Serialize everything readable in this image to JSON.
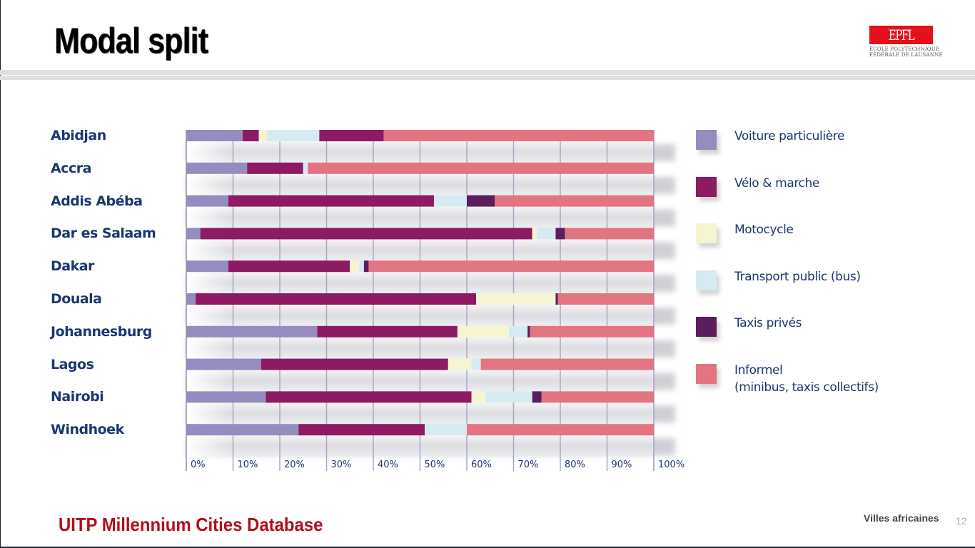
{
  "header": {
    "title": "Modal split",
    "logo": {
      "mark": "EPFL",
      "line1": "ÉCOLE POLYTECHNIQUE",
      "line2": "FÉDÉRALE DE LAUSANNE",
      "color": "#e5101b"
    }
  },
  "footer": {
    "source": "UITP Millennium Cities Database",
    "section": "Villes africaines",
    "page_number": "12"
  },
  "chart_data": {
    "type": "bar",
    "orientation": "horizontal",
    "stacked": "percent",
    "title": "Modal split",
    "xlabel": "",
    "ylabel": "",
    "xlim": [
      0,
      100
    ],
    "grid": true,
    "legend_position": "right",
    "x_ticks": [
      "0%",
      "10%",
      "20%",
      "30%",
      "40%",
      "50%",
      "60%",
      "70%",
      "80%",
      "90%",
      "100%"
    ],
    "categories": [
      "Abidjan",
      "Accra",
      "Addis Abéba",
      "Dar es Salaam",
      "Dakar",
      "Douala",
      "Johannesburg",
      "Lagos",
      "Nairobi",
      "Windhoek"
    ],
    "series": [
      {
        "name": "Voiture particulière",
        "color": "#958dbf",
        "values": [
          14,
          13,
          9,
          3,
          9,
          2,
          28,
          16,
          17,
          24
        ]
      },
      {
        "name": "Vélo & marche",
        "color": "#8e1a63",
        "values": [
          4,
          12,
          44,
          71,
          26,
          60,
          30,
          40,
          44,
          27
        ]
      },
      {
        "name": "Motocycle",
        "color": "#f6f5d2",
        "values": [
          2,
          0,
          0,
          1,
          2,
          17,
          11,
          5,
          3,
          0
        ]
      },
      {
        "name": "Transport public (bus)",
        "color": "#d5ebf2",
        "values": [
          13,
          1,
          7,
          4,
          1,
          0,
          4,
          2,
          10,
          9
        ]
      },
      {
        "name": "Taxis privés",
        "color": "#5c1d5d",
        "values": [
          0,
          0,
          6,
          2,
          1,
          0.5,
          0.5,
          0,
          2,
          0
        ]
      },
      {
        "name": "Informel (minibus, taxis collectifs)",
        "color": "#e27581",
        "values": [
          67,
          74,
          34,
          19,
          61,
          20.5,
          26.5,
          37,
          24,
          40
        ]
      }
    ],
    "extra_segments_note": "Abidjan shows a second Vélo & marche segment after the bus segment",
    "abidjan_second_walk_segment": 16
  },
  "legend": [
    {
      "label": "Voiture particulière",
      "color": "#958dbf"
    },
    {
      "label": "Vélo & marche",
      "color": "#8e1a63"
    },
    {
      "label": "Motocycle",
      "color": "#f6f5d2"
    },
    {
      "label": "Transport public (bus)",
      "color": "#d5ebf2"
    },
    {
      "label": "Taxis privés",
      "color": "#5c1d5d"
    },
    {
      "label": "Informel",
      "label_line2": "(minibus, taxis collectifs)",
      "color": "#e27581"
    }
  ]
}
